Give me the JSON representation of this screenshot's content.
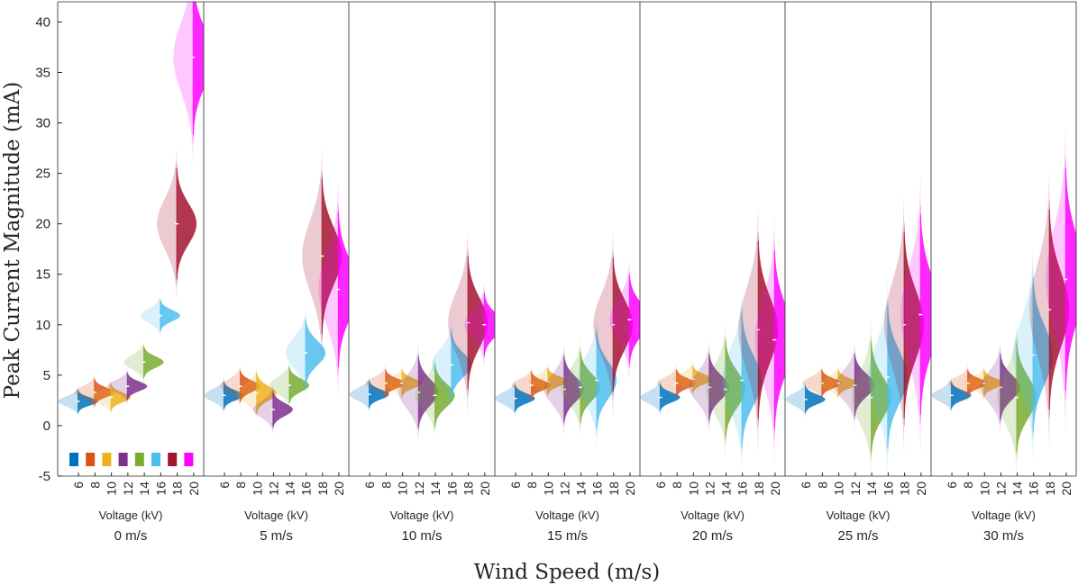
{
  "chart_data": {
    "type": "violin",
    "ylabel": "Peak Current Magnitude (mA)",
    "xlabel": "Wind Speed (m/s)",
    "ylim": [
      -5,
      42
    ],
    "yticks": [
      -5,
      0,
      5,
      10,
      15,
      20,
      25,
      30,
      35,
      40
    ],
    "voltage_axis_label": "Voltage (kV)",
    "voltages": [
      "6",
      "8",
      "10",
      "12",
      "14",
      "16",
      "18",
      "20"
    ],
    "colors": [
      "#0072bd",
      "#d95319",
      "#edb120",
      "#7e2f8e",
      "#77ac30",
      "#4dbeee",
      "#a2142f",
      "#ff00ff"
    ],
    "panels": [
      {
        "label": "0 m/s",
        "medians": [
          2.4,
          3.3,
          2.8,
          3.9,
          6.3,
          10.9,
          20.0,
          36.5
        ],
        "spread": [
          0.5,
          0.6,
          0.6,
          0.6,
          0.7,
          0.7,
          2.5,
          3.5
        ]
      },
      {
        "label": "5 m/s",
        "medians": [
          3.0,
          3.9,
          3.2,
          1.6,
          4.0,
          7.2,
          16.8,
          13.5
        ],
        "spread": [
          0.6,
          0.7,
          0.9,
          0.8,
          0.8,
          1.5,
          3.5,
          3.5
        ]
      },
      {
        "label": "10 m/s",
        "medians": [
          3.1,
          4.2,
          4.2,
          3.3,
          3.0,
          6.0,
          10.2,
          10.0
        ],
        "spread": [
          0.6,
          0.6,
          0.6,
          1.6,
          1.4,
          1.5,
          3.0,
          1.4
        ]
      },
      {
        "label": "15 m/s",
        "medians": [
          2.7,
          4.0,
          4.4,
          3.6,
          3.8,
          4.5,
          10.0,
          10.5
        ],
        "spread": [
          0.6,
          0.6,
          0.6,
          1.5,
          1.6,
          2.2,
          3.0,
          2.0
        ]
      },
      {
        "label": "20 m/s",
        "medians": [
          2.8,
          4.2,
          4.6,
          3.8,
          3.6,
          4.5,
          9.5,
          8.5
        ],
        "spread": [
          0.6,
          0.6,
          0.6,
          1.5,
          2.2,
          3.0,
          4.0,
          4.0
        ]
      },
      {
        "label": "25 m/s",
        "medians": [
          2.6,
          4.2,
          4.2,
          4.0,
          2.8,
          4.8,
          10.0,
          11.0
        ],
        "spread": [
          0.6,
          0.6,
          0.6,
          1.4,
          2.5,
          3.2,
          4.2,
          4.5
        ]
      },
      {
        "label": "30 m/s",
        "medians": [
          3.0,
          4.2,
          4.2,
          3.8,
          2.8,
          7.0,
          11.5,
          14.5
        ],
        "spread": [
          0.6,
          0.6,
          0.6,
          1.5,
          2.5,
          3.5,
          4.5,
          5.0
        ]
      }
    ]
  }
}
